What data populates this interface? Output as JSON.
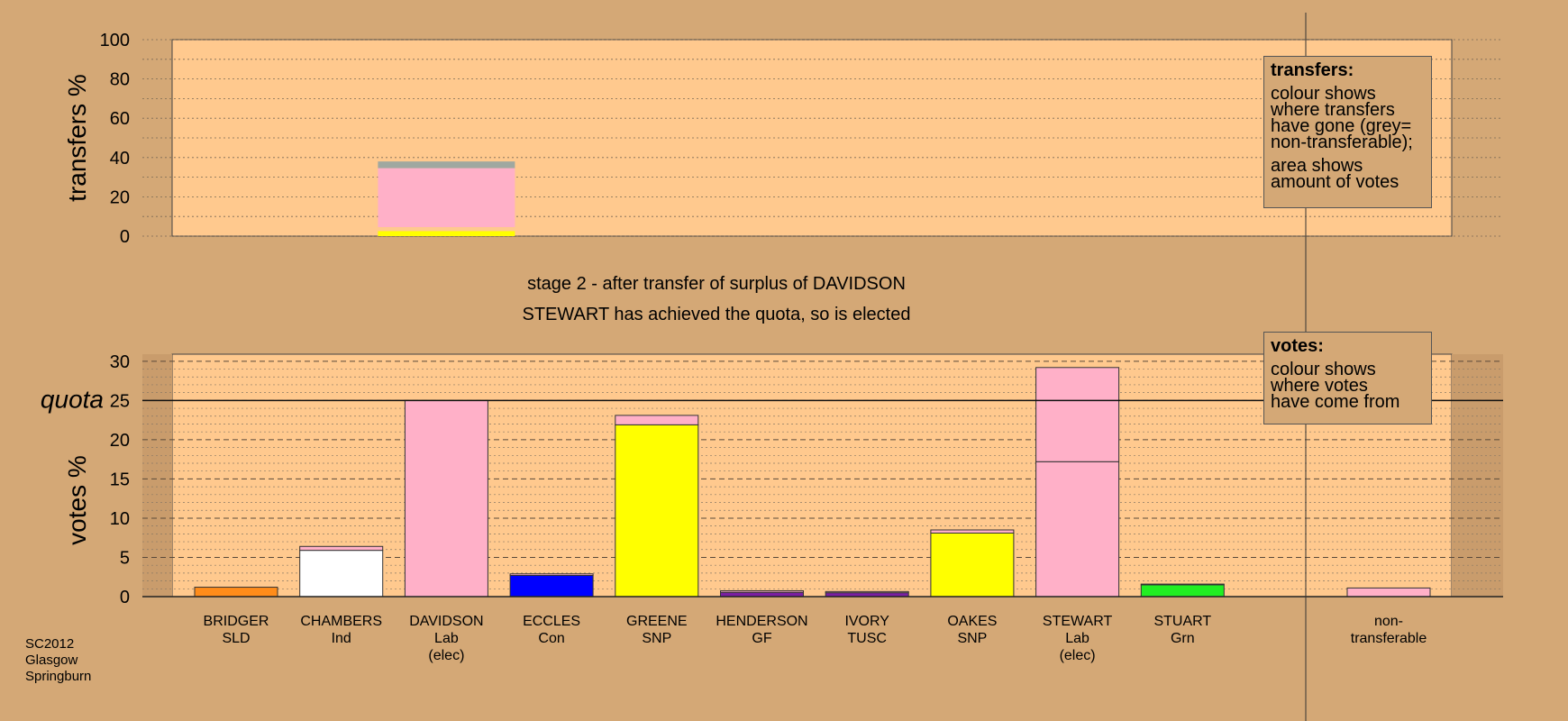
{
  "stage_line_1": "stage 2 - after transfer of surplus of DAVIDSON",
  "stage_line_2": "STEWART has achieved the quota, so is elected",
  "transfers_legend": {
    "title": "transfers:",
    "lines_1": [
      "colour shows",
      "where transfers",
      "have gone (grey=",
      "non-transferable);"
    ],
    "lines_2": [
      "area shows",
      "amount of votes"
    ]
  },
  "votes_legend": {
    "title": "votes:",
    "lines": [
      "colour shows",
      "where votes",
      "have come from"
    ]
  },
  "footer": [
    "SC2012",
    "Glasgow",
    "Springburn"
  ],
  "colors": {
    "background": "#D4A876",
    "plot_bg": "#FFC98E",
    "lab": "#FFB0C8",
    "snp": "#FFFF00",
    "con": "#0000FF",
    "sld": "#FF8C1A",
    "ind": "#FFFFFF",
    "grn": "#22EE22",
    "purple": "#7A1FA2",
    "nontransferable": "#A0A8A0"
  },
  "chart_data": [
    {
      "type": "bar",
      "title": "",
      "ylabel": "transfers %",
      "ylim": [
        0,
        100
      ],
      "yticks": [
        0,
        20,
        40,
        60,
        80,
        100
      ],
      "grid": true,
      "bars": [
        {
          "candidate": "DAVIDSON",
          "segments": [
            {
              "from": "GREENE",
              "value": 2.6,
              "color": "#FFFF00"
            },
            {
              "from": "OAKES",
              "value": 2.0,
              "color": "#FFC98E"
            },
            {
              "from": "STEWART",
              "value": 30.0,
              "color": "#FFB0C8"
            },
            {
              "from": "non-transferable",
              "value": 3.4,
              "color": "#A0A8A0"
            }
          ]
        }
      ]
    },
    {
      "type": "bar",
      "title": "",
      "ylabel": "votes %",
      "ylim": [
        0,
        30
      ],
      "yticks": [
        0,
        5,
        10,
        15,
        20,
        25,
        30
      ],
      "quota": 25,
      "quota_label": "quota",
      "grid": true,
      "candidates": [
        {
          "name": "BRIDGER",
          "party": "SLD",
          "note": "",
          "segments": [
            {
              "value": 1.2,
              "color": "#FF8C1A"
            }
          ]
        },
        {
          "name": "CHAMBERS",
          "party": "Ind",
          "note": "",
          "segments": [
            {
              "value": 5.9,
              "color": "#FFFFFF"
            },
            {
              "value": 0.5,
              "color": "#FFB0C8"
            }
          ]
        },
        {
          "name": "DAVIDSON",
          "party": "Lab",
          "note": "(elec)",
          "segments": [
            {
              "value": 25.0,
              "color": "#FFB0C8"
            }
          ]
        },
        {
          "name": "ECCLES",
          "party": "Con",
          "note": "",
          "segments": [
            {
              "value": 2.7,
              "color": "#0000FF"
            },
            {
              "value": 0.2,
              "color": "#FFB0C8"
            }
          ]
        },
        {
          "name": "GREENE",
          "party": "SNP",
          "note": "",
          "segments": [
            {
              "value": 21.9,
              "color": "#FFFF00"
            },
            {
              "value": 1.2,
              "color": "#FFB0C8"
            }
          ]
        },
        {
          "name": "HENDERSON",
          "party": "GF",
          "note": "",
          "segments": [
            {
              "value": 0.55,
              "color": "#7A1FA2"
            },
            {
              "value": 0.2,
              "color": "#FFB0C8"
            }
          ]
        },
        {
          "name": "IVORY",
          "party": "TUSC",
          "note": "",
          "segments": [
            {
              "value": 0.5,
              "color": "#7A1FA2"
            },
            {
              "value": 0.15,
              "color": "#FFB0C8"
            }
          ]
        },
        {
          "name": "OAKES",
          "party": "SNP",
          "note": "",
          "segments": [
            {
              "value": 8.1,
              "color": "#FFFF00"
            },
            {
              "value": 0.4,
              "color": "#FFB0C8"
            }
          ]
        },
        {
          "name": "STEWART",
          "party": "Lab",
          "note": "(elec)",
          "segments": [
            {
              "value": 17.2,
              "color": "#FFB0C8"
            },
            {
              "value": 12.0,
              "color": "#FFB0C8"
            }
          ]
        },
        {
          "name": "STUART",
          "party": "Grn",
          "note": "",
          "segments": [
            {
              "value": 1.5,
              "color": "#22EE22"
            },
            {
              "value": 0.1,
              "color": "#FFB0C8"
            }
          ]
        }
      ],
      "nontransferable": {
        "label_1": "non-",
        "label_2": "transferable",
        "value": 1.1,
        "color": "#FFB0C8"
      }
    }
  ]
}
